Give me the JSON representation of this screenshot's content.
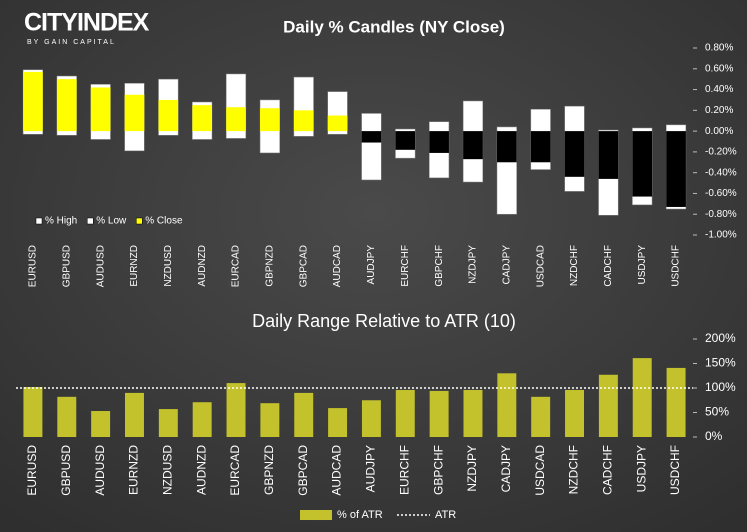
{
  "logo": {
    "name": "CITYINDEX",
    "tagline": "BY GAIN CAPITAL"
  },
  "chart_data": [
    {
      "type": "candle",
      "title": "Daily % Candles (NY Close)",
      "categories": [
        "EURUSD",
        "GBPUSD",
        "AUDUSD",
        "EURNZD",
        "NZDUSD",
        "AUDNZD",
        "EURCAD",
        "GBPNZD",
        "GBPCAD",
        "AUDCAD",
        "AUDJPY",
        "EURCHF",
        "GBPCHF",
        "NZDJPY",
        "CADJPY",
        "USDCAD",
        "NZDCHF",
        "CADCHF",
        "USDJPY",
        "USDCHF"
      ],
      "series": [
        {
          "name": "% High",
          "color": "#ffffff",
          "values": [
            0.59,
            0.53,
            0.45,
            0.46,
            0.5,
            0.28,
            0.55,
            0.3,
            0.52,
            0.38,
            0.17,
            0.02,
            0.09,
            0.29,
            0.04,
            0.21,
            0.24,
            0.01,
            0.03,
            0.06
          ]
        },
        {
          "name": "% Low",
          "color": "#ffffff",
          "values": [
            -0.03,
            -0.04,
            -0.08,
            -0.19,
            -0.04,
            -0.08,
            -0.07,
            -0.21,
            -0.05,
            -0.03,
            -0.47,
            -0.26,
            -0.45,
            -0.49,
            -0.8,
            -0.37,
            -0.58,
            -0.81,
            -0.71,
            -0.75
          ]
        },
        {
          "name": "% Close",
          "color": "#ffff00",
          "negative_color": "#000000",
          "values": [
            0.57,
            0.5,
            0.42,
            0.35,
            0.3,
            0.25,
            0.23,
            0.22,
            0.2,
            0.15,
            -0.11,
            -0.18,
            -0.21,
            -0.27,
            -0.3,
            -0.3,
            -0.44,
            -0.46,
            -0.63,
            -0.73
          ]
        }
      ],
      "ylim": [
        -1.0,
        0.8
      ],
      "yticks": [
        {
          "value": 0.8,
          "label": "0.80%"
        },
        {
          "value": 0.6,
          "label": "0.60%"
        },
        {
          "value": 0.4,
          "label": "0.40%"
        },
        {
          "value": 0.2,
          "label": "0.20%"
        },
        {
          "value": 0,
          "label": "0.00%"
        },
        {
          "value": -0.2,
          "label": "-0.20%"
        },
        {
          "value": -0.4,
          "label": "-0.40%"
        },
        {
          "value": -0.6,
          "label": "-0.60%"
        },
        {
          "value": -0.8,
          "label": "-0.80%"
        },
        {
          "value": -1.0,
          "label": "-1.00%"
        }
      ],
      "legend": "lower left"
    },
    {
      "type": "bar",
      "title": "Daily Range Relative to ATR (10)",
      "categories": [
        "EURUSD",
        "GBPUSD",
        "AUDUSD",
        "EURNZD",
        "NZDUSD",
        "AUDNZD",
        "EURCAD",
        "GBPNZD",
        "GBPCAD",
        "AUDCAD",
        "AUDJPY",
        "EURCHF",
        "GBPCHF",
        "NZDJPY",
        "CADJPY",
        "USDCAD",
        "NZDCHF",
        "CADCHF",
        "USDJPY",
        "USDCHF"
      ],
      "series": [
        {
          "name": "% of ATR",
          "color": "#c3c22c",
          "values": [
            102,
            82,
            53,
            90,
            57,
            71,
            110,
            69,
            90,
            59,
            75,
            96,
            94,
            96,
            130,
            82,
            96,
            127,
            161,
            141
          ]
        }
      ],
      "reference": {
        "name": "ATR",
        "value": 100,
        "color": "#ffffff"
      },
      "ylim": [
        0,
        200
      ],
      "yticks": [
        {
          "value": 0,
          "label": "0%"
        },
        {
          "value": 50,
          "label": "50%"
        },
        {
          "value": 100,
          "label": "100%"
        },
        {
          "value": 150,
          "label": "150%"
        },
        {
          "value": 200,
          "label": "200%"
        }
      ],
      "legend": "lower center"
    }
  ]
}
